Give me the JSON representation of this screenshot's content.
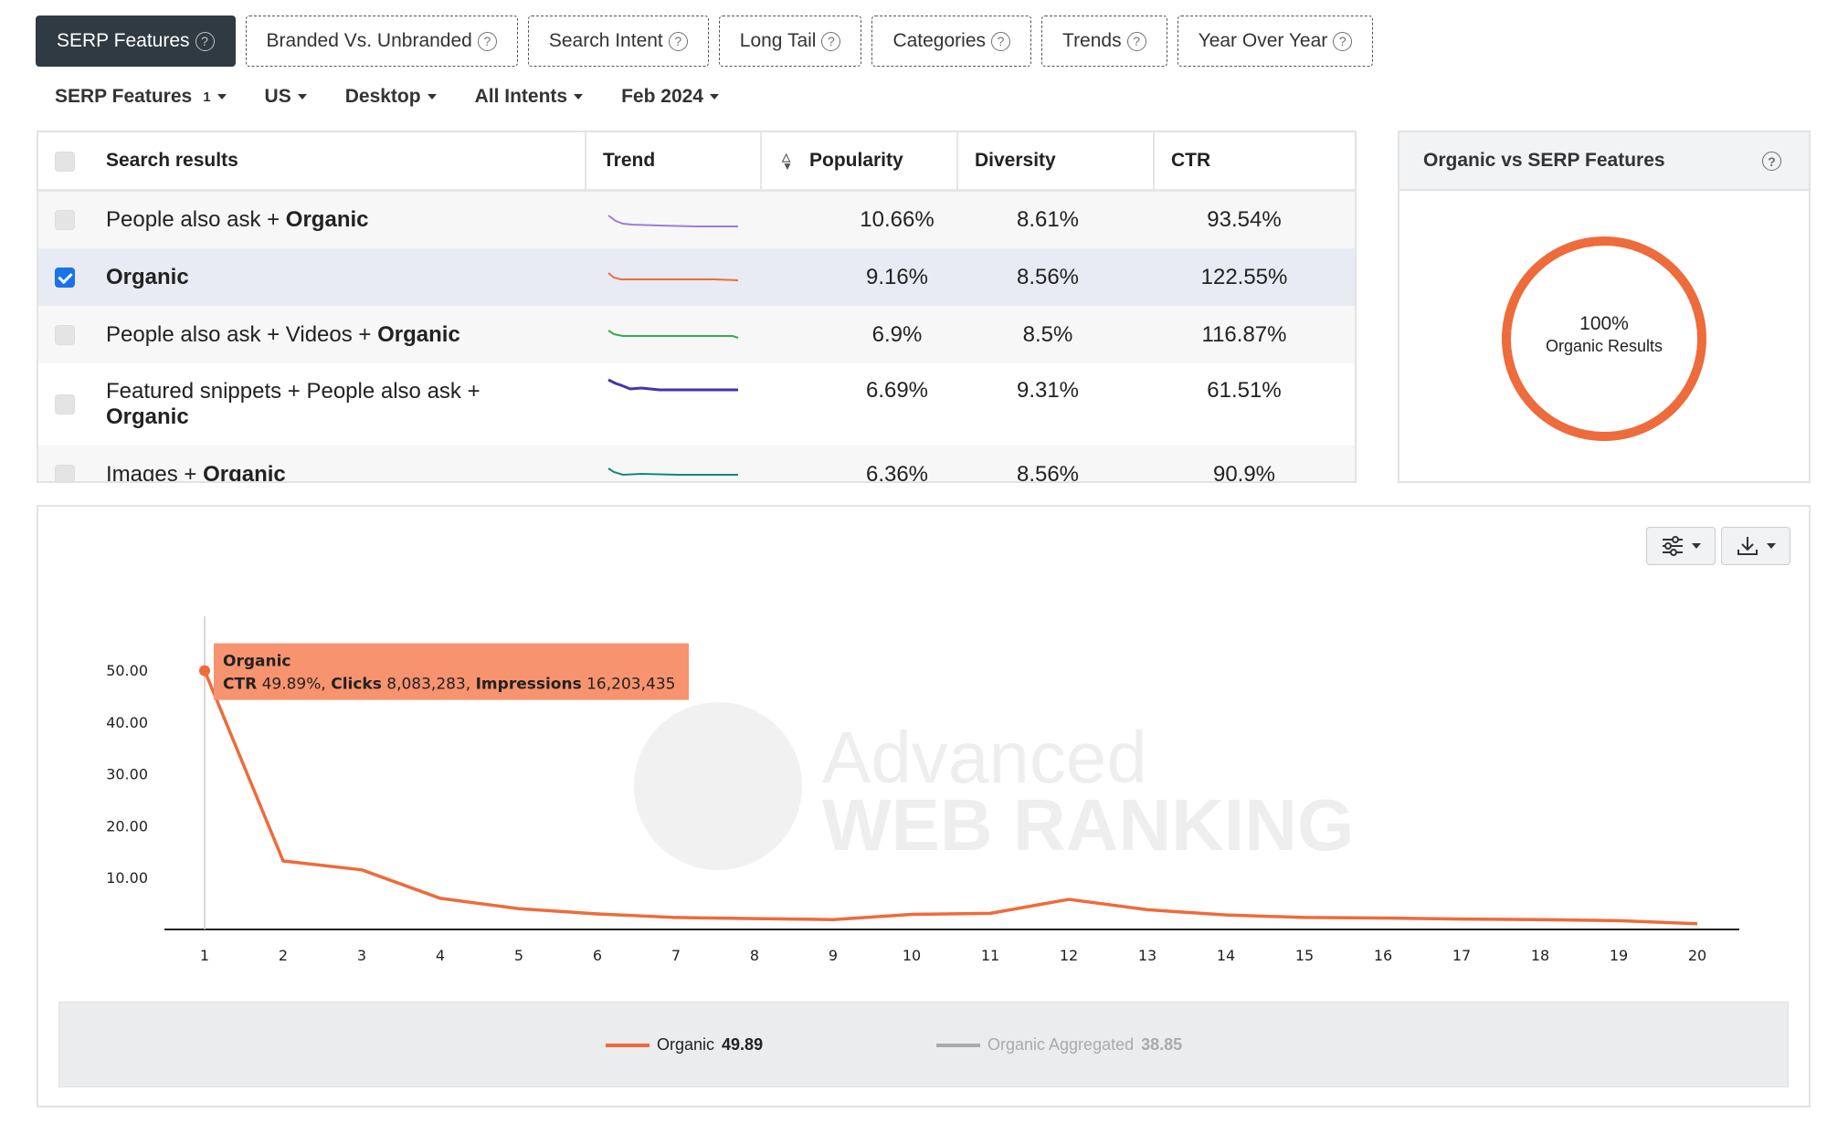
{
  "tabs": [
    {
      "label": "SERP Features",
      "active": true
    },
    {
      "label": "Branded Vs. Unbranded",
      "active": false
    },
    {
      "label": "Search Intent",
      "active": false
    },
    {
      "label": "Long Tail",
      "active": false
    },
    {
      "label": "Categories",
      "active": false
    },
    {
      "label": "Trends",
      "active": false
    },
    {
      "label": "Year Over Year",
      "active": false
    }
  ],
  "filters": {
    "serp": "SERP Features",
    "serp_count": "1",
    "country": "US",
    "device": "Desktop",
    "intent": "All Intents",
    "date": "Feb 2024"
  },
  "table": {
    "headers": {
      "name": "Search results",
      "trend": "Trend",
      "popularity": "Popularity",
      "diversity": "Diversity",
      "ctr": "CTR"
    },
    "rows": [
      {
        "prefix": "People also ask + ",
        "bold": "Organic",
        "popularity": "10.66%",
        "diversity": "8.61%",
        "ctr": "93.54%",
        "checked": false,
        "trend_color": "#9b7fd6"
      },
      {
        "prefix": "",
        "bold": "Organic",
        "popularity": "9.16%",
        "diversity": "8.56%",
        "ctr": "122.55%",
        "checked": true,
        "trend_color": "#ee6b3b"
      },
      {
        "prefix": "People also ask + Videos + ",
        "bold": "Organic",
        "popularity": "6.9%",
        "diversity": "8.5%",
        "ctr": "116.87%",
        "checked": false,
        "trend_color": "#3aaa4a"
      },
      {
        "prefix": "Featured snippets + People also ask + ",
        "bold": "Organic",
        "popularity": "6.69%",
        "diversity": "9.31%",
        "ctr": "61.51%",
        "checked": false,
        "trend_color": "#4a32a8"
      },
      {
        "prefix": "Images + ",
        "bold": "Organic",
        "popularity": "6.36%",
        "diversity": "8.56%",
        "ctr": "90.9%",
        "checked": false,
        "trend_color": "#128a78"
      }
    ]
  },
  "donut": {
    "title": "Organic vs SERP Features",
    "percent": "100%",
    "label": "Organic Results",
    "color": "#ee6b3b"
  },
  "chart_data": {
    "type": "line",
    "x": [
      1,
      2,
      3,
      4,
      5,
      6,
      7,
      8,
      9,
      10,
      11,
      12,
      13,
      14,
      15,
      16,
      17,
      18,
      19,
      20
    ],
    "series": [
      {
        "name": "Organic",
        "color": "#ee6b3b",
        "values": [
          49.89,
          13.2,
          11.5,
          6.0,
          4.0,
          3.0,
          2.3,
          2.1,
          1.9,
          2.9,
          3.1,
          5.8,
          3.8,
          2.8,
          2.3,
          2.2,
          2.0,
          1.9,
          1.7,
          1.1
        ]
      }
    ],
    "yticks": [
      "10.00",
      "20.00",
      "30.00",
      "40.00",
      "50.00"
    ],
    "ylim": [
      0,
      50
    ],
    "tooltip": {
      "series": "Organic",
      "ctr_label": "CTR",
      "ctr_value": "49.89%",
      "clicks_label": "Clicks",
      "clicks_value": "8,083,283",
      "impressions_label": "Impressions",
      "impressions_value": "16,203,435"
    },
    "legend": [
      {
        "name": "Organic",
        "value": "49.89",
        "color": "#ee6b3b",
        "active": true
      },
      {
        "name": "Organic Aggregated",
        "value": "38.85",
        "color": "#aaaaaa",
        "active": false
      }
    ],
    "watermark": {
      "line1": "Advanced",
      "line2": "WEB RANKING"
    }
  }
}
